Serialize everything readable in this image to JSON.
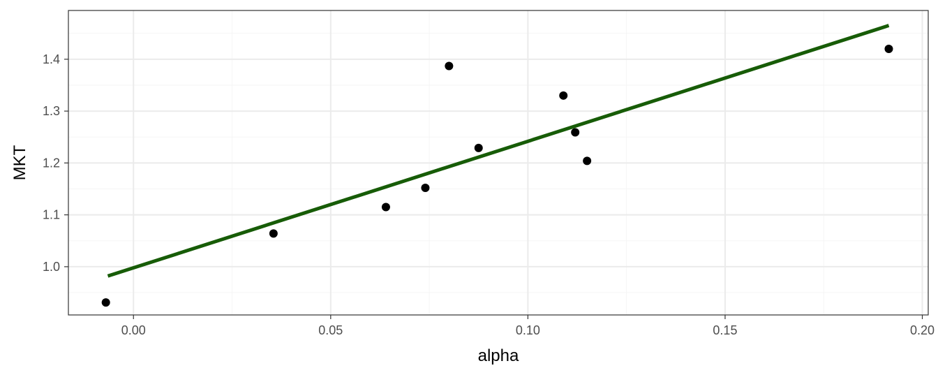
{
  "chart_data": {
    "type": "scatter",
    "xlabel": "alpha",
    "ylabel": "MKT",
    "xlim": [
      -0.0165,
      0.2015
    ],
    "ylim": [
      0.907,
      1.494
    ],
    "x_ticks": [
      0.0,
      0.05,
      0.1,
      0.15,
      0.2
    ],
    "x_tick_labels": [
      "0.00",
      "0.05",
      "0.10",
      "0.15",
      "0.20"
    ],
    "y_ticks": [
      1.0,
      1.1,
      1.2,
      1.3,
      1.4
    ],
    "y_tick_labels": [
      "1.0",
      "1.1",
      "1.2",
      "1.3",
      "1.4"
    ],
    "grid": true,
    "points": [
      {
        "x": -0.007,
        "y": 0.931
      },
      {
        "x": 0.0355,
        "y": 1.064
      },
      {
        "x": 0.064,
        "y": 1.115
      },
      {
        "x": 0.074,
        "y": 1.152
      },
      {
        "x": 0.08,
        "y": 1.387
      },
      {
        "x": 0.0875,
        "y": 1.229
      },
      {
        "x": 0.109,
        "y": 1.33
      },
      {
        "x": 0.112,
        "y": 1.259
      },
      {
        "x": 0.115,
        "y": 1.204
      },
      {
        "x": 0.1915,
        "y": 1.42
      }
    ],
    "fit_line": {
      "x": [
        -0.0065,
        0.1915
      ],
      "y": [
        0.982,
        1.465
      ],
      "color": "#175c07"
    },
    "point_color": "#000000",
    "panel_border_color": "#333333",
    "grid_major_color": "#ebebeb",
    "grid_minor_color": "#f5f5f5"
  }
}
